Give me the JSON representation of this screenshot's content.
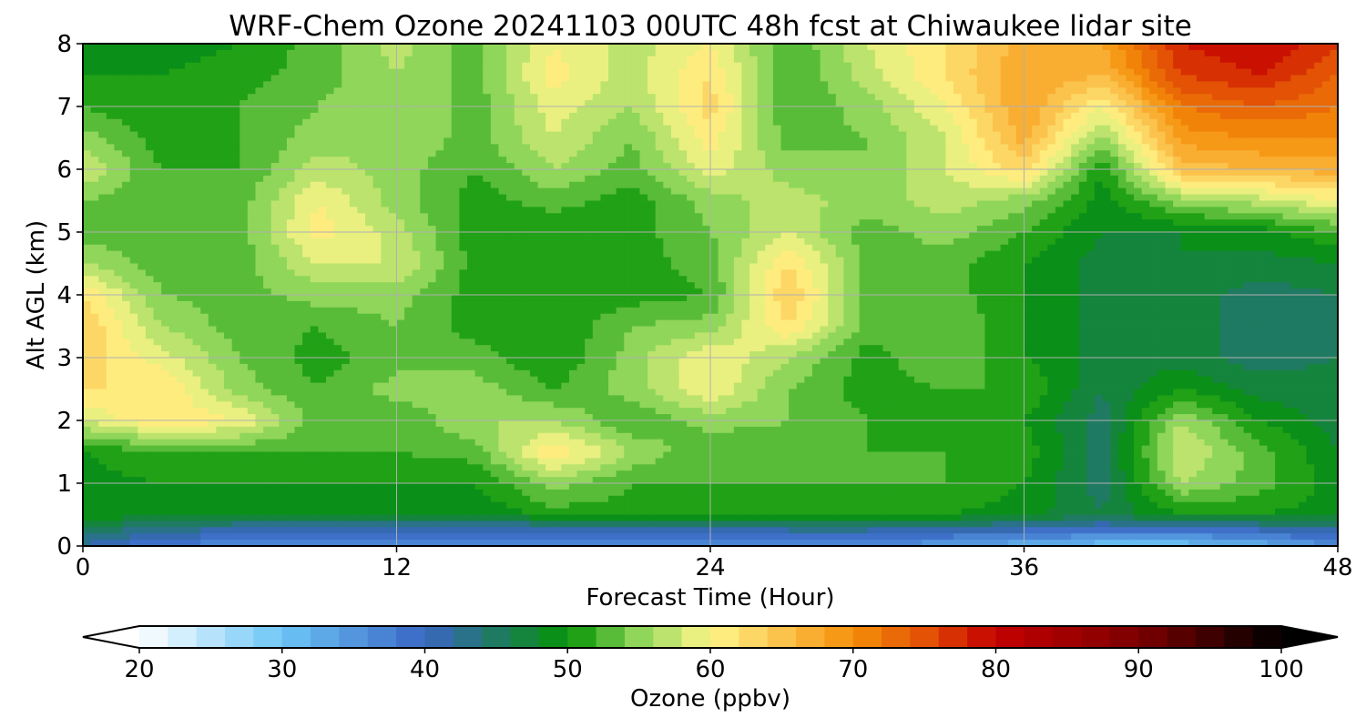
{
  "chart_data": {
    "type": "heatmap",
    "title": "WRF-Chem Ozone  20241103 00UTC 48h fcst at Chiwaukee lidar site",
    "xlabel": "Forecast Time (Hour)",
    "ylabel": "Alt AGL (km)",
    "xlim": [
      0,
      48
    ],
    "ylim": [
      0,
      8
    ],
    "xticks": [
      "0",
      "12",
      "24",
      "36",
      "48"
    ],
    "yticks": [
      "0",
      "1",
      "2",
      "3",
      "4",
      "5",
      "6",
      "7",
      "8"
    ],
    "grid": true,
    "colorbar": {
      "label": "Ozone  (ppbv)",
      "range": [
        20,
        100
      ],
      "ticks": [
        "20",
        "30",
        "40",
        "50",
        "60",
        "70",
        "80",
        "90",
        "100"
      ],
      "extend": "both",
      "colors": [
        {
          "v": 20,
          "c": "#ffffff"
        },
        {
          "v": 30,
          "c": "#6cc6f6"
        },
        {
          "v": 40,
          "c": "#3a66c4"
        },
        {
          "v": 45,
          "c": "#1f7a62"
        },
        {
          "v": 50,
          "c": "#059405"
        },
        {
          "v": 55,
          "c": "#8fd65a"
        },
        {
          "v": 60,
          "c": "#fff78a"
        },
        {
          "v": 65,
          "c": "#fbc24c"
        },
        {
          "v": 70,
          "c": "#f58f0a"
        },
        {
          "v": 75,
          "c": "#e35205"
        },
        {
          "v": 80,
          "c": "#c40000"
        },
        {
          "v": 90,
          "c": "#7c0000"
        },
        {
          "v": 100,
          "c": "#000000"
        }
      ]
    },
    "x": [
      0,
      3,
      6,
      9,
      12,
      15,
      18,
      21,
      24,
      27,
      30,
      33,
      36,
      39,
      42,
      45,
      48
    ],
    "y": [
      0,
      0.25,
      0.5,
      1,
      1.5,
      2,
      2.5,
      3,
      3.5,
      4,
      4.5,
      5,
      5.5,
      6,
      6.5,
      7,
      7.5,
      8
    ],
    "z": [
      [
        42,
        37,
        37,
        37,
        36,
        36,
        37,
        37,
        37,
        37,
        36,
        34,
        32,
        30,
        30,
        32,
        36
      ],
      [
        45,
        43,
        41,
        40,
        40,
        40,
        40,
        41,
        41,
        42,
        42,
        41,
        40,
        39,
        39,
        40,
        42
      ],
      [
        49,
        49,
        48,
        48,
        48,
        48,
        51,
        51,
        51,
        51,
        51,
        50,
        49,
        46,
        50,
        50,
        49
      ],
      [
        49,
        50,
        50,
        50,
        50,
        50,
        55,
        52,
        52,
        52,
        52,
        52,
        50,
        45,
        56,
        53,
        49
      ],
      [
        50,
        52,
        52,
        52,
        52,
        53,
        62,
        56,
        52,
        53,
        52,
        52,
        51,
        45,
        58,
        53,
        48
      ],
      [
        58,
        62,
        60,
        53,
        52,
        56,
        56,
        52,
        55,
        54,
        52,
        51,
        50,
        45,
        56,
        50,
        47
      ],
      [
        62,
        62,
        55,
        52,
        55,
        55,
        52,
        55,
        60,
        54,
        51,
        52,
        52,
        46,
        50,
        47,
        47
      ],
      [
        63,
        59,
        54,
        51,
        53,
        53,
        50,
        55,
        60,
        56,
        51,
        54,
        50,
        47,
        47,
        45,
        46
      ],
      [
        64,
        56,
        53,
        52,
        54,
        51,
        50,
        54,
        55,
        62,
        53,
        54,
        50,
        47,
        47,
        45,
        46
      ],
      [
        62,
        54,
        53,
        55,
        55,
        51,
        50,
        51,
        52,
        64,
        53,
        53,
        50,
        47,
        47,
        45,
        46
      ],
      [
        56,
        53,
        53,
        58,
        58,
        51,
        50,
        51,
        53,
        62,
        53,
        53,
        50,
        47,
        48,
        47,
        48
      ],
      [
        53,
        52,
        53,
        61,
        57,
        51,
        50,
        51,
        54,
        58,
        53,
        55,
        52,
        48,
        48,
        49,
        52
      ],
      [
        54,
        52,
        53,
        60,
        55,
        51,
        53,
        51,
        55,
        57,
        55,
        57,
        55,
        49,
        55,
        57,
        60
      ],
      [
        58,
        52,
        52,
        57,
        55,
        52,
        56,
        53,
        59,
        55,
        54,
        58,
        63,
        50,
        65,
        66,
        67
      ],
      [
        55,
        51,
        52,
        55,
        56,
        53,
        58,
        54,
        61,
        53,
        54,
        58,
        67,
        55,
        69,
        70,
        70
      ],
      [
        52,
        50,
        52,
        54,
        56,
        53,
        59,
        56,
        63,
        52,
        55,
        60,
        68,
        60,
        72,
        74,
        72
      ],
      [
        50,
        50,
        51,
        53,
        56,
        53,
        61,
        57,
        62,
        52,
        57,
        62,
        68,
        66,
        76,
        78,
        74
      ],
      [
        48,
        49,
        50,
        53,
        57,
        53,
        60,
        57,
        60,
        52,
        58,
        62,
        67,
        68,
        78,
        80,
        76
      ]
    ]
  }
}
